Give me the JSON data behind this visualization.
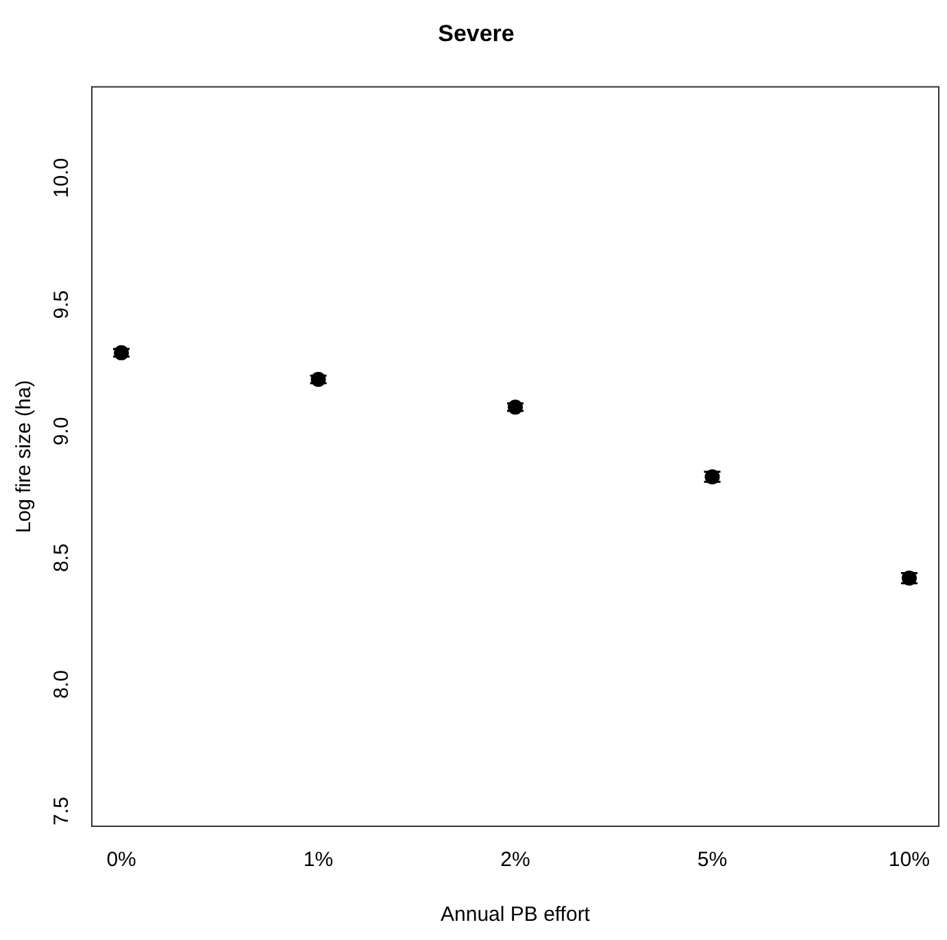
{
  "chart_data": {
    "type": "scatter",
    "title": "Severe",
    "xlabel": "Annual PB effort",
    "ylabel": "Log fire size (ha)",
    "categories": [
      "0%",
      "1%",
      "2%",
      "5%",
      "10%"
    ],
    "series": [
      {
        "color": "#000000",
        "values": [
          9.31,
          9.205,
          9.095,
          8.82,
          8.42
        ],
        "errors": [
          0.015,
          0.015,
          0.015,
          0.02,
          0.02
        ]
      }
    ],
    "ylim": [
      7.44,
      10.36
    ],
    "yticks": [
      7.5,
      {
        "value": 8,
        "label": "8.0"
      },
      8.5,
      {
        "value": 9,
        "label": "9.0"
      },
      9.5,
      {
        "value": 10,
        "label": "10.0"
      }
    ],
    "grid": false,
    "legend": false,
    "marker": "circle"
  }
}
